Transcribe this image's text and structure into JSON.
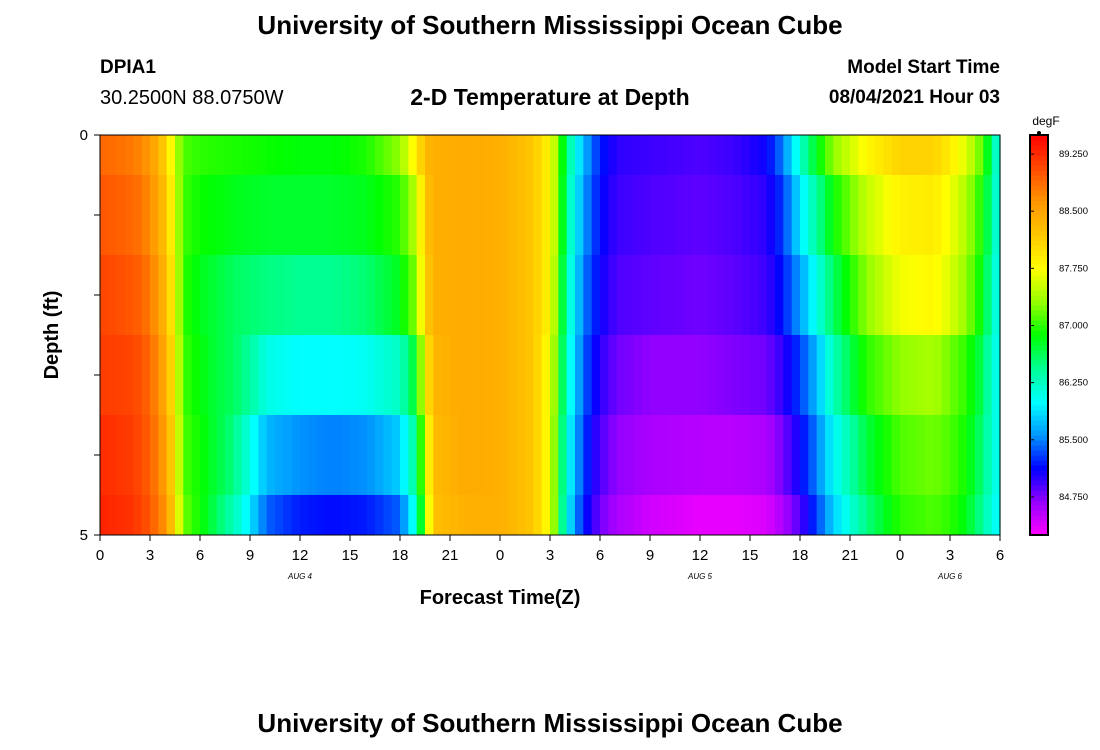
{
  "header": {
    "title": "University of Southern Mississippi Ocean Cube",
    "station": "DPIA1",
    "coordinates": "30.2500N  88.0750W",
    "subtitle": "2-D Temperature at Depth",
    "model_start_label": "Model Start Time",
    "model_start_value": "08/04/2021 Hour 03",
    "footer": "University of Southern Mississippi Ocean Cube"
  },
  "chart_data": {
    "type": "heatmap",
    "title": "2-D Temperature at Depth",
    "xlabel": "Forecast Time(Z)",
    "ylabel": "Depth (ft)",
    "colorbar_unit": "degF",
    "xlim": [
      0,
      54
    ],
    "ylim": [
      0,
      5
    ],
    "x_ticks": [
      0,
      3,
      6,
      9,
      12,
      15,
      18,
      21,
      24,
      27,
      30,
      33,
      36,
      39,
      42,
      45,
      48,
      51,
      54
    ],
    "x_tick_labels": [
      "0",
      "3",
      "6",
      "9",
      "12",
      "15",
      "18",
      "21",
      "0",
      "3",
      "6",
      "9",
      "12",
      "15",
      "18",
      "21",
      "0",
      "3",
      "6"
    ],
    "y_tick_labels": [
      {
        "value": 0,
        "label": "0"
      },
      {
        "value": 5,
        "label": "5"
      }
    ],
    "date_labels": [
      {
        "x": 12,
        "label": "AUG 4"
      },
      {
        "x": 36,
        "label": "AUG 5"
      },
      {
        "x": 51,
        "label": "AUG 6"
      }
    ],
    "colorbar": {
      "min": 84.25,
      "max": 89.5,
      "tick_values": [
        89.25,
        88.5,
        87.75,
        87.0,
        86.25,
        85.5,
        84.75
      ],
      "tick_labels": [
        "89.250",
        "88.500",
        "87.750",
        "87.000",
        "86.250",
        "85.500",
        "84.750"
      ],
      "colors": [
        "#ff00ff",
        "#9600ff",
        "#0000ff",
        "#0096ff",
        "#00ffff",
        "#00ff96",
        "#00ff00",
        "#96ff00",
        "#ffff00",
        "#ffc800",
        "#ff9600",
        "#ff4b00",
        "#ff0000"
      ]
    },
    "depth_rows": [
      {
        "depth": [
          0.0,
          0.5
        ],
        "x": [
          0,
          2,
          3,
          4,
          4.5,
          5,
          6,
          8,
          10,
          12,
          14,
          16,
          18,
          19,
          19.5,
          20,
          22,
          24,
          26,
          27,
          27.5,
          28,
          29,
          30,
          31,
          33,
          36,
          38,
          40,
          41,
          42,
          43,
          44,
          46,
          48,
          50,
          51,
          52,
          53,
          53.5,
          54
        ],
        "v": [
          88.9,
          88.8,
          88.6,
          88.1,
          87.5,
          87.1,
          87.0,
          86.95,
          86.9,
          86.85,
          86.85,
          86.95,
          87.3,
          87.9,
          88.3,
          88.4,
          88.45,
          88.4,
          88.2,
          87.8,
          87.2,
          86.5,
          85.7,
          85.2,
          85.0,
          84.95,
          84.9,
          84.95,
          85.1,
          85.5,
          86.2,
          86.8,
          87.3,
          87.8,
          88.1,
          88.1,
          87.9,
          87.6,
          87.1,
          86.5,
          86.0
        ]
      },
      {
        "depth": [
          0.5,
          1.5
        ],
        "x": [
          0,
          2,
          3,
          4,
          4.5,
          5,
          6,
          8,
          10,
          12,
          14,
          16,
          18,
          19,
          19.5,
          20,
          22,
          24,
          26,
          27,
          27.5,
          28,
          29,
          30,
          31,
          33,
          36,
          38,
          40,
          41,
          42,
          43,
          44,
          46,
          48,
          50,
          51,
          52,
          53,
          53.5,
          54
        ],
        "v": [
          89.0,
          88.9,
          88.7,
          88.2,
          87.6,
          87.05,
          86.9,
          86.8,
          86.75,
          86.75,
          86.75,
          86.8,
          87.0,
          87.5,
          88.2,
          88.4,
          88.45,
          88.4,
          88.2,
          87.8,
          87.2,
          86.4,
          85.6,
          85.15,
          84.95,
          84.9,
          84.85,
          84.9,
          85.0,
          85.3,
          85.9,
          86.4,
          86.9,
          87.5,
          87.85,
          87.9,
          87.7,
          87.4,
          86.9,
          86.4,
          86.0
        ]
      },
      {
        "depth": [
          1.5,
          2.5
        ],
        "x": [
          0,
          2,
          3,
          4,
          4.5,
          5,
          6,
          8,
          10,
          12,
          14,
          16,
          18,
          19,
          19.5,
          20,
          22,
          24,
          26,
          27,
          27.5,
          28,
          29,
          30,
          31,
          33,
          36,
          38,
          40,
          41,
          42,
          43,
          44,
          46,
          48,
          50,
          51,
          52,
          53,
          53.5,
          54
        ],
        "v": [
          89.1,
          89.0,
          88.8,
          88.3,
          87.7,
          87.0,
          86.8,
          86.6,
          86.5,
          86.45,
          86.45,
          86.55,
          86.8,
          87.3,
          88.1,
          88.4,
          88.45,
          88.4,
          88.2,
          87.8,
          87.1,
          86.3,
          85.5,
          85.1,
          84.9,
          84.85,
          84.8,
          84.85,
          84.95,
          85.2,
          85.6,
          86.1,
          86.6,
          87.3,
          87.7,
          87.8,
          87.6,
          87.3,
          86.8,
          86.3,
          86.0
        ]
      },
      {
        "depth": [
          2.5,
          3.5
        ],
        "x": [
          0,
          2,
          3,
          4,
          4.5,
          5,
          6,
          7,
          8,
          9,
          10,
          12,
          14,
          16,
          18,
          19,
          19.5,
          20,
          22,
          24,
          26,
          27,
          27.5,
          28,
          29,
          30,
          31,
          33,
          36,
          38,
          40,
          41,
          42,
          43,
          44,
          46,
          48,
          50,
          51,
          52,
          53,
          53.5,
          54
        ],
        "v": [
          89.15,
          89.1,
          88.9,
          88.4,
          87.8,
          87.05,
          86.85,
          86.7,
          86.6,
          86.4,
          86.1,
          86.0,
          86.0,
          86.05,
          86.25,
          86.8,
          87.8,
          88.35,
          88.45,
          88.4,
          88.2,
          87.7,
          87.0,
          86.2,
          85.4,
          85.0,
          84.8,
          84.7,
          84.7,
          84.75,
          84.8,
          85.0,
          85.3,
          85.7,
          86.3,
          87.0,
          87.3,
          87.4,
          87.2,
          87.0,
          86.6,
          86.2,
          86.0
        ]
      },
      {
        "depth": [
          3.5,
          4.5
        ],
        "x": [
          0,
          2,
          3,
          4,
          4.5,
          5,
          6,
          7,
          8,
          9,
          10,
          12,
          14,
          16,
          18,
          19,
          19.5,
          20,
          22,
          24,
          26,
          27,
          27.5,
          28,
          29,
          30,
          31,
          33,
          36,
          38,
          40,
          41,
          42,
          43,
          44,
          46,
          48,
          50,
          51,
          52,
          53,
          53.5,
          54
        ],
        "v": [
          89.25,
          89.15,
          88.95,
          88.5,
          87.9,
          87.1,
          86.9,
          86.7,
          86.5,
          86.1,
          85.7,
          85.55,
          85.5,
          85.55,
          85.8,
          86.5,
          87.5,
          88.3,
          88.45,
          88.4,
          88.2,
          87.7,
          86.9,
          86.1,
          85.3,
          84.9,
          84.7,
          84.6,
          84.55,
          84.55,
          84.6,
          84.8,
          85.1,
          85.5,
          86.0,
          86.7,
          87.1,
          87.2,
          87.1,
          86.9,
          86.5,
          86.2,
          86.0
        ]
      },
      {
        "depth": [
          4.5,
          5.0
        ],
        "x": [
          0,
          2,
          3,
          4,
          4.5,
          5,
          6,
          7,
          8,
          9,
          10,
          12,
          14,
          16,
          18,
          19,
          19.5,
          20,
          22,
          24,
          26,
          27,
          27.5,
          28,
          29,
          30,
          31,
          33,
          36,
          38,
          40,
          41,
          42,
          43,
          44,
          46,
          48,
          50,
          51,
          52,
          53,
          53.5,
          54
        ],
        "v": [
          89.3,
          89.2,
          89.0,
          88.6,
          88.0,
          87.2,
          86.9,
          86.6,
          86.3,
          85.9,
          85.4,
          85.2,
          85.15,
          85.2,
          85.4,
          86.2,
          87.3,
          88.25,
          88.4,
          88.4,
          88.2,
          87.7,
          86.9,
          86.0,
          85.2,
          84.8,
          84.6,
          84.45,
          84.35,
          84.35,
          84.4,
          84.6,
          84.9,
          85.3,
          85.8,
          86.5,
          87.0,
          87.1,
          87.0,
          86.8,
          86.4,
          86.1,
          86.0
        ]
      }
    ]
  }
}
